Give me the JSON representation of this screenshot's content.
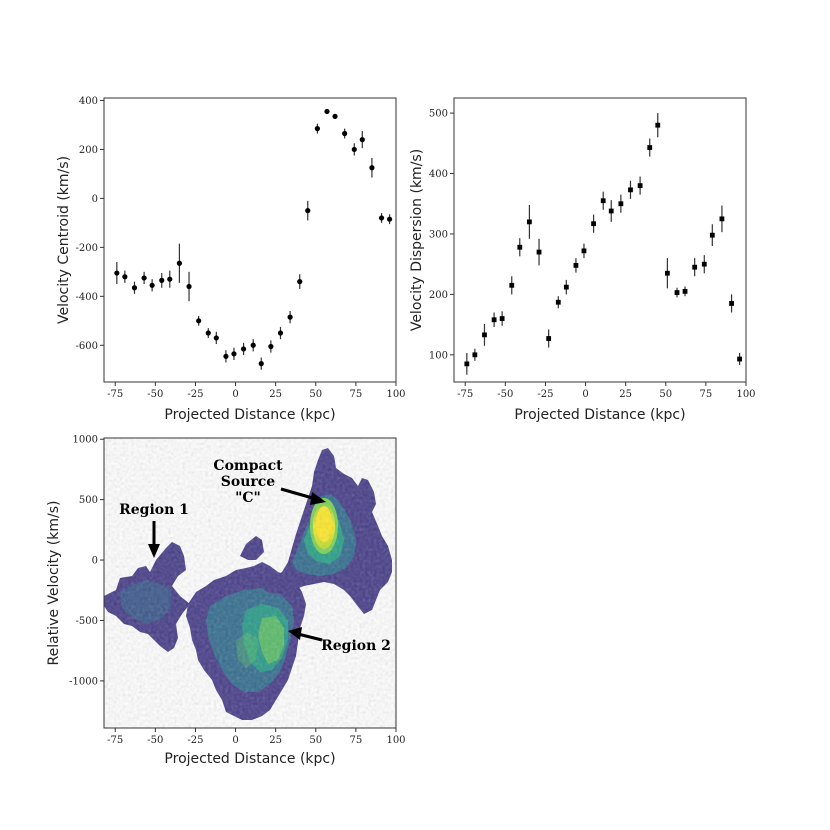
{
  "chart_data": [
    {
      "panel": "velocity-centroid",
      "type": "scatter",
      "xlabel": "Projected Distance (kpc)",
      "ylabel": "Velocity Centroid (km/s)",
      "xlim": [
        -82,
        100
      ],
      "ylim": [
        -750,
        410
      ],
      "xticks": [
        -75,
        -50,
        -25,
        0,
        25,
        50,
        75,
        100
      ],
      "yticks": [
        -600,
        -400,
        -200,
        0,
        200,
        400
      ],
      "grid": false,
      "series": [
        {
          "marker": "circle",
          "color": "#000000",
          "x": [
            -74,
            -69,
            -63,
            -57,
            -52,
            -46,
            -41,
            -35,
            -29,
            -23,
            -17,
            -12,
            -6,
            -1,
            5,
            11,
            16,
            22,
            28,
            34,
            40,
            45,
            51,
            57,
            62,
            68,
            74,
            79,
            85,
            91,
            96
          ],
          "y": [
            -305,
            -320,
            -365,
            -325,
            -355,
            -335,
            -330,
            -265,
            -360,
            -500,
            -550,
            -570,
            -645,
            -635,
            -615,
            -600,
            -675,
            -605,
            -550,
            -485,
            -340,
            -50,
            285,
            355,
            335,
            265,
            200,
            240,
            125,
            -80,
            -85
          ],
          "err": [
            45,
            25,
            25,
            25,
            25,
            30,
            35,
            80,
            60,
            20,
            20,
            25,
            25,
            25,
            25,
            25,
            25,
            25,
            25,
            25,
            30,
            40,
            20,
            8,
            8,
            20,
            25,
            35,
            40,
            20,
            20
          ]
        }
      ]
    },
    {
      "panel": "velocity-dispersion",
      "type": "scatter",
      "xlabel": "Projected Distance (kpc)",
      "ylabel": "Velocity Dispersion (km/s)",
      "xlim": [
        -82,
        100
      ],
      "ylim": [
        55,
        525
      ],
      "xticks": [
        -75,
        -50,
        -25,
        0,
        25,
        50,
        75,
        100
      ],
      "yticks": [
        100,
        200,
        300,
        400,
        500
      ],
      "grid": false,
      "series": [
        {
          "marker": "square",
          "color": "#000000",
          "x": [
            -74,
            -69,
            -63,
            -57,
            -52,
            -46,
            -41,
            -35,
            -29,
            -23,
            -17,
            -12,
            -6,
            -1,
            5,
            11,
            16,
            22,
            28,
            34,
            40,
            45,
            51,
            57,
            62,
            68,
            74,
            79,
            85,
            91,
            96
          ],
          "y": [
            85,
            100,
            133,
            158,
            160,
            215,
            278,
            320,
            270,
            127,
            187,
            212,
            248,
            272,
            317,
            355,
            338,
            350,
            373,
            380,
            443,
            480,
            235,
            203,
            205,
            245,
            250,
            298,
            325,
            185,
            93
          ],
          "err": [
            18,
            10,
            18,
            12,
            12,
            15,
            15,
            28,
            22,
            15,
            10,
            12,
            12,
            12,
            15,
            15,
            18,
            15,
            15,
            15,
            15,
            20,
            25,
            8,
            8,
            15,
            15,
            18,
            22,
            15,
            10
          ]
        }
      ]
    },
    {
      "panel": "position-velocity-map",
      "type": "heatmap",
      "xlabel": "Projected Distance (kpc)",
      "ylabel": "Relative Velocity (km/s)",
      "xlim": [
        -82,
        100
      ],
      "ylim": [
        -1390,
        1010
      ],
      "xticks": [
        -75,
        -50,
        -25,
        0,
        25,
        50,
        75,
        100
      ],
      "yticks": [
        -1000,
        -500,
        0,
        500,
        1000
      ],
      "grid": false,
      "colormap": [
        "#3b1a5c",
        "#3e4a89",
        "#2a788e",
        "#22a884",
        "#7ad151",
        "#fde725"
      ],
      "annotations": [
        {
          "lines": [
            "Compact",
            "Source",
            "\"C\""
          ]
        },
        {
          "lines": [
            "Region 1"
          ]
        },
        {
          "lines": [
            "Region 2"
          ]
        }
      ]
    }
  ]
}
